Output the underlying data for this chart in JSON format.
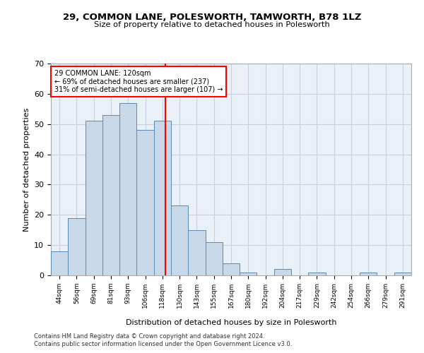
{
  "title1": "29, COMMON LANE, POLESWORTH, TAMWORTH, B78 1LZ",
  "title2": "Size of property relative to detached houses in Polesworth",
  "xlabel": "Distribution of detached houses by size in Polesworth",
  "ylabel": "Number of detached properties",
  "categories": [
    "44sqm",
    "56sqm",
    "69sqm",
    "81sqm",
    "93sqm",
    "106sqm",
    "118sqm",
    "130sqm",
    "143sqm",
    "155sqm",
    "167sqm",
    "180sqm",
    "192sqm",
    "204sqm",
    "217sqm",
    "229sqm",
    "242sqm",
    "254sqm",
    "266sqm",
    "279sqm",
    "291sqm"
  ],
  "values": [
    8,
    19,
    51,
    53,
    57,
    48,
    51,
    23,
    15,
    11,
    4,
    1,
    0,
    2,
    0,
    1,
    0,
    0,
    1,
    0,
    1
  ],
  "bar_color": "#c8d8e8",
  "bar_edge_color": "#5a8ab0",
  "reference_line_label": "29 COMMON LANE: 120sqm",
  "annotation_line1": "← 69% of detached houses are smaller (237)",
  "annotation_line2": "31% of semi-detached houses are larger (107) →",
  "ylim": [
    0,
    70
  ],
  "yticks": [
    0,
    10,
    20,
    30,
    40,
    50,
    60,
    70
  ],
  "grid_color": "#c8d0dc",
  "background_color": "#eaf0f8",
  "footnote1": "Contains HM Land Registry data © Crown copyright and database right 2024.",
  "footnote2": "Contains public sector information licensed under the Open Government Licence v3.0."
}
